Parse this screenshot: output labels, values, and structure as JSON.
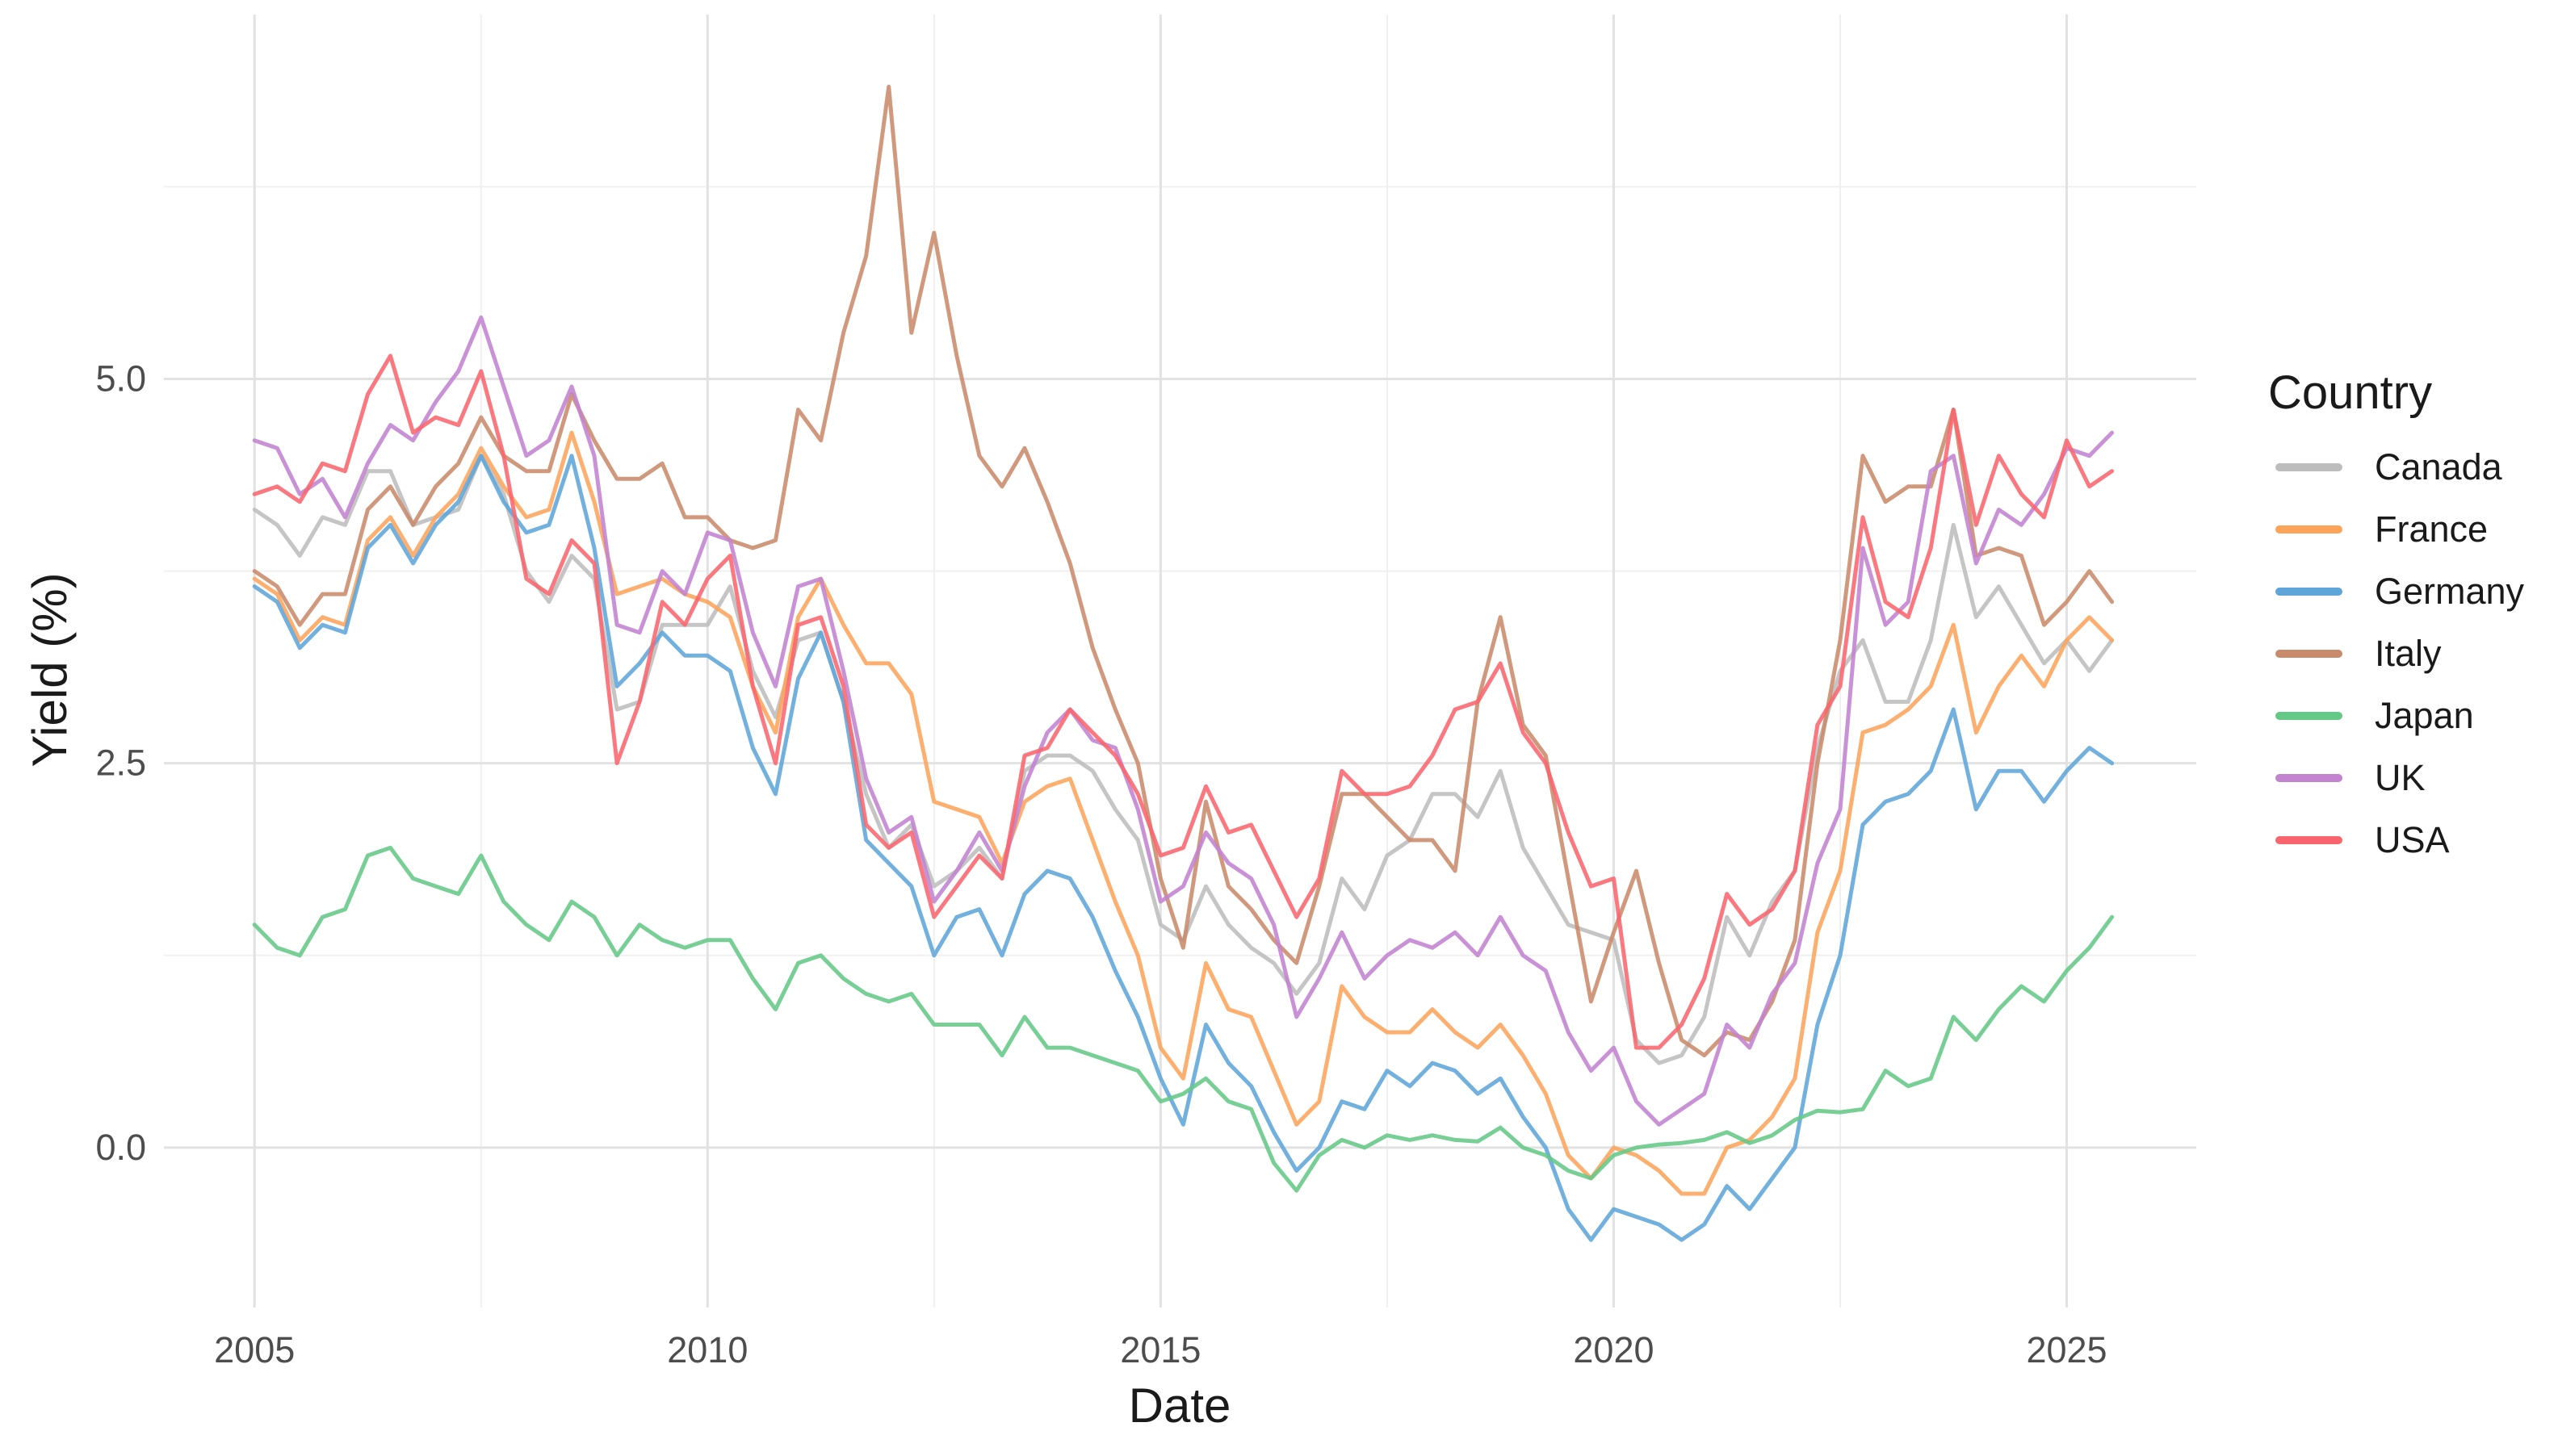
{
  "chart_data": {
    "type": "line",
    "title": "",
    "xlabel": "Date",
    "ylabel": "Yield (%)",
    "xlim": [
      2004.0,
      2026.43
    ],
    "ylim": [
      -1.04,
      7.37
    ],
    "x_ticks": [
      2005,
      2010,
      2015,
      2020,
      2025
    ],
    "x_tick_labels": [
      "2005",
      "2010",
      "2015",
      "2020",
      "2025"
    ],
    "x_minor_ticks": [
      2007.5,
      2012.5,
      2017.5,
      2022.5
    ],
    "y_ticks": [
      0.0,
      2.5,
      5.0
    ],
    "y_tick_labels": [
      "0.0",
      "2.5",
      "5.0"
    ],
    "y_minor_ticks": [
      1.25,
      3.75,
      6.25
    ],
    "grid": true,
    "legend": {
      "title": "Country",
      "position": "right"
    },
    "x": [
      2005.0,
      2005.25,
      2005.5,
      2005.75,
      2006.0,
      2006.25,
      2006.5,
      2006.75,
      2007.0,
      2007.25,
      2007.5,
      2007.75,
      2008.0,
      2008.25,
      2008.5,
      2008.75,
      2009.0,
      2009.25,
      2009.5,
      2009.75,
      2010.0,
      2010.25,
      2010.5,
      2010.75,
      2011.0,
      2011.25,
      2011.5,
      2011.75,
      2012.0,
      2012.25,
      2012.5,
      2012.75,
      2013.0,
      2013.25,
      2013.5,
      2013.75,
      2014.0,
      2014.25,
      2014.5,
      2014.75,
      2015.0,
      2015.25,
      2015.5,
      2015.75,
      2016.0,
      2016.25,
      2016.5,
      2016.75,
      2017.0,
      2017.25,
      2017.5,
      2017.75,
      2018.0,
      2018.25,
      2018.5,
      2018.75,
      2019.0,
      2019.25,
      2019.5,
      2019.75,
      2020.0,
      2020.25,
      2020.5,
      2020.75,
      2021.0,
      2021.25,
      2021.5,
      2021.75,
      2022.0,
      2022.25,
      2022.5,
      2022.75,
      2023.0,
      2023.25,
      2023.5,
      2023.75,
      2024.0,
      2024.25,
      2024.5,
      2024.75,
      2025.0,
      2025.25,
      2025.5
    ],
    "series": [
      {
        "name": "Canada",
        "color": "#BDBDBD",
        "values": [
          4.15,
          4.05,
          3.85,
          4.1,
          4.05,
          4.4,
          4.4,
          4.05,
          4.1,
          4.15,
          4.5,
          4.25,
          3.75,
          3.55,
          3.85,
          3.7,
          2.85,
          2.9,
          3.4,
          3.4,
          3.4,
          3.65,
          3.1,
          2.8,
          3.3,
          3.35,
          2.9,
          2.3,
          1.95,
          2.1,
          1.7,
          1.8,
          1.95,
          1.75,
          2.45,
          2.55,
          2.55,
          2.45,
          2.2,
          2.0,
          1.45,
          1.35,
          1.7,
          1.45,
          1.3,
          1.2,
          1.0,
          1.2,
          1.75,
          1.55,
          1.9,
          2.0,
          2.3,
          2.3,
          2.15,
          2.45,
          1.95,
          1.7,
          1.45,
          1.4,
          1.35,
          0.7,
          0.55,
          0.6,
          0.85,
          1.5,
          1.25,
          1.6,
          1.8,
          2.6,
          3.1,
          3.3,
          2.9,
          2.9,
          3.3,
          4.05,
          3.45,
          3.65,
          3.4,
          3.15,
          3.3,
          3.1,
          3.3
        ]
      },
      {
        "name": "France",
        "color": "#FCA45A",
        "values": [
          3.7,
          3.6,
          3.3,
          3.45,
          3.4,
          3.95,
          4.1,
          3.85,
          4.1,
          4.25,
          4.55,
          4.3,
          4.1,
          4.15,
          4.65,
          4.2,
          3.6,
          3.65,
          3.7,
          3.6,
          3.55,
          3.45,
          3.0,
          2.7,
          3.45,
          3.7,
          3.4,
          3.15,
          3.15,
          2.95,
          2.25,
          2.2,
          2.15,
          1.85,
          2.25,
          2.35,
          2.4,
          2.0,
          1.6,
          1.25,
          0.65,
          0.45,
          1.2,
          0.9,
          0.85,
          0.5,
          0.15,
          0.3,
          1.05,
          0.85,
          0.75,
          0.75,
          0.9,
          0.75,
          0.65,
          0.8,
          0.6,
          0.35,
          -0.05,
          -0.2,
          0.0,
          -0.05,
          -0.15,
          -0.3,
          -0.3,
          0.0,
          0.05,
          0.2,
          0.45,
          1.4,
          1.8,
          2.7,
          2.75,
          2.85,
          3.0,
          3.4,
          2.7,
          3.0,
          3.2,
          3.0,
          3.3,
          3.45,
          3.3
        ]
      },
      {
        "name": "Germany",
        "color": "#5FA5DA",
        "values": [
          3.65,
          3.55,
          3.25,
          3.4,
          3.35,
          3.9,
          4.05,
          3.8,
          4.05,
          4.2,
          4.5,
          4.2,
          4.0,
          4.05,
          4.5,
          3.9,
          3.0,
          3.15,
          3.35,
          3.2,
          3.2,
          3.1,
          2.6,
          2.3,
          3.05,
          3.35,
          2.9,
          2.0,
          1.85,
          1.7,
          1.25,
          1.5,
          1.55,
          1.25,
          1.65,
          1.8,
          1.75,
          1.5,
          1.15,
          0.85,
          0.45,
          0.15,
          0.8,
          0.55,
          0.4,
          0.1,
          -0.15,
          0.0,
          0.3,
          0.25,
          0.5,
          0.4,
          0.55,
          0.5,
          0.35,
          0.45,
          0.2,
          0.0,
          -0.4,
          -0.6,
          -0.4,
          -0.45,
          -0.5,
          -0.6,
          -0.5,
          -0.25,
          -0.4,
          -0.2,
          0.0,
          0.8,
          1.25,
          2.1,
          2.25,
          2.3,
          2.45,
          2.85,
          2.2,
          2.45,
          2.45,
          2.25,
          2.45,
          2.6,
          2.5
        ]
      },
      {
        "name": "Italy",
        "color": "#C98B6B",
        "values": [
          3.75,
          3.65,
          3.4,
          3.6,
          3.6,
          4.15,
          4.3,
          4.05,
          4.3,
          4.45,
          4.75,
          4.5,
          4.4,
          4.4,
          4.9,
          4.6,
          4.35,
          4.35,
          4.45,
          4.1,
          4.1,
          3.95,
          3.9,
          3.95,
          4.8,
          4.6,
          5.3,
          5.8,
          6.9,
          5.3,
          5.95,
          5.15,
          4.5,
          4.3,
          4.55,
          4.2,
          3.8,
          3.25,
          2.85,
          2.5,
          1.75,
          1.3,
          2.25,
          1.7,
          1.55,
          1.35,
          1.2,
          1.7,
          2.3,
          2.3,
          2.15,
          2.0,
          2.0,
          1.8,
          2.9,
          3.45,
          2.75,
          2.55,
          1.75,
          0.95,
          1.4,
          1.8,
          1.2,
          0.7,
          0.6,
          0.75,
          0.7,
          0.95,
          1.35,
          2.5,
          3.3,
          4.5,
          4.2,
          4.3,
          4.3,
          4.8,
          3.85,
          3.9,
          3.85,
          3.4,
          3.55,
          3.75,
          3.55
        ]
      },
      {
        "name": "Japan",
        "color": "#65C887",
        "values": [
          1.45,
          1.3,
          1.25,
          1.5,
          1.55,
          1.9,
          1.95,
          1.75,
          1.7,
          1.65,
          1.9,
          1.6,
          1.45,
          1.35,
          1.6,
          1.5,
          1.25,
          1.45,
          1.35,
          1.3,
          1.35,
          1.35,
          1.1,
          0.9,
          1.2,
          1.25,
          1.1,
          1.0,
          0.95,
          1.0,
          0.8,
          0.8,
          0.8,
          0.6,
          0.85,
          0.65,
          0.65,
          0.6,
          0.55,
          0.5,
          0.3,
          0.35,
          0.45,
          0.3,
          0.25,
          -0.1,
          -0.28,
          -0.05,
          0.05,
          0.0,
          0.08,
          0.05,
          0.08,
          0.05,
          0.04,
          0.13,
          0.0,
          -0.05,
          -0.15,
          -0.2,
          -0.05,
          0.0,
          0.02,
          0.03,
          0.05,
          0.1,
          0.03,
          0.08,
          0.18,
          0.24,
          0.23,
          0.25,
          0.5,
          0.4,
          0.45,
          0.85,
          0.7,
          0.9,
          1.05,
          0.95,
          1.15,
          1.3,
          1.5
        ]
      },
      {
        "name": "UK",
        "color": "#C383D0",
        "values": [
          4.6,
          4.55,
          4.25,
          4.35,
          4.1,
          4.45,
          4.7,
          4.6,
          4.85,
          5.05,
          5.4,
          4.95,
          4.5,
          4.6,
          4.95,
          4.5,
          3.4,
          3.35,
          3.75,
          3.6,
          4.0,
          3.95,
          3.35,
          3.0,
          3.65,
          3.7,
          3.1,
          2.4,
          2.05,
          2.15,
          1.6,
          1.8,
          2.05,
          1.8,
          2.35,
          2.7,
          2.85,
          2.65,
          2.6,
          2.2,
          1.6,
          1.7,
          2.05,
          1.85,
          1.75,
          1.45,
          0.85,
          1.1,
          1.4,
          1.1,
          1.25,
          1.35,
          1.3,
          1.4,
          1.25,
          1.5,
          1.25,
          1.15,
          0.75,
          0.5,
          0.65,
          0.3,
          0.15,
          0.25,
          0.35,
          0.8,
          0.65,
          1.0,
          1.2,
          1.85,
          2.2,
          3.9,
          3.4,
          3.55,
          4.4,
          4.5,
          3.8,
          4.15,
          4.05,
          4.25,
          4.55,
          4.5,
          4.65
        ]
      },
      {
        "name": "USA",
        "color": "#F9656D",
        "values": [
          4.25,
          4.3,
          4.2,
          4.45,
          4.4,
          4.9,
          5.15,
          4.65,
          4.75,
          4.7,
          5.05,
          4.5,
          3.7,
          3.6,
          3.95,
          3.8,
          2.5,
          2.9,
          3.55,
          3.4,
          3.7,
          3.85,
          3.0,
          2.5,
          3.4,
          3.45,
          3.0,
          2.1,
          1.95,
          2.05,
          1.5,
          1.7,
          1.9,
          1.75,
          2.55,
          2.6,
          2.85,
          2.7,
          2.55,
          2.3,
          1.9,
          1.95,
          2.35,
          2.05,
          2.1,
          1.8,
          1.5,
          1.75,
          2.45,
          2.3,
          2.3,
          2.35,
          2.55,
          2.85,
          2.9,
          3.15,
          2.7,
          2.5,
          2.05,
          1.7,
          1.75,
          0.65,
          0.65,
          0.8,
          1.1,
          1.65,
          1.45,
          1.55,
          1.8,
          2.75,
          3.0,
          4.1,
          3.55,
          3.45,
          3.9,
          4.8,
          4.05,
          4.5,
          4.25,
          4.1,
          4.6,
          4.3,
          4.4
        ]
      }
    ]
  }
}
